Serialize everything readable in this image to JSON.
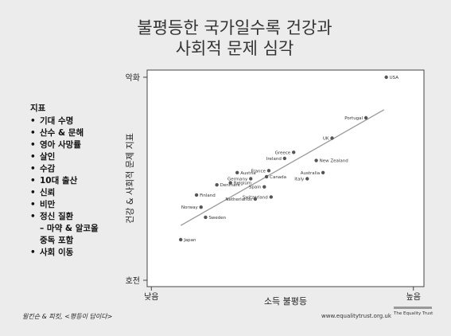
{
  "title": {
    "line1": "불평등한 국가일수록 건강과",
    "line2": "사회적 문제 심각"
  },
  "indicators": {
    "title": "지표",
    "items": [
      {
        "text": "기대 수명",
        "bullet": true
      },
      {
        "text": "산수 & 문해",
        "bullet": true
      },
      {
        "text": "영아 사망률",
        "bullet": true
      },
      {
        "text": "살인",
        "bullet": true
      },
      {
        "text": "수감",
        "bullet": true
      },
      {
        "text": "10대 출산",
        "bullet": true
      },
      {
        "text": "신뢰",
        "bullet": true
      },
      {
        "text": "비만",
        "bullet": true
      },
      {
        "text": "정신 질환",
        "bullet": true
      },
      {
        "text": "– 마약 & 알코올",
        "bullet": false
      },
      {
        "text": "중독 포함",
        "bullet": false
      },
      {
        "text": "사회 이동",
        "bullet": true
      }
    ]
  },
  "citation": "윌킨슨 & 피킷, <평등이 답이다>",
  "website": "www.equalitytrust.org.uk",
  "logo_text": "The Equality Trust",
  "chart_data": {
    "type": "scatter",
    "xlabel": "소득 불평등",
    "ylabel": "건강 & 사회적 문제 지표",
    "x_tick_labels": {
      "low": "낮음",
      "high": "높음"
    },
    "y_tick_labels": {
      "bad": "악화",
      "good": "호전"
    },
    "xlim": [
      0,
      100
    ],
    "ylim": [
      0,
      100
    ],
    "trendline": {
      "start": [
        5,
        27
      ],
      "end": [
        95,
        84
      ]
    },
    "points": [
      {
        "label": "USA",
        "x": 96,
        "y": 100,
        "label_side": "right"
      },
      {
        "label": "Portugal",
        "x": 87,
        "y": 80,
        "label_side": "left"
      },
      {
        "label": "UK",
        "x": 72,
        "y": 70,
        "label_side": "left"
      },
      {
        "label": "Greece",
        "x": 55,
        "y": 63,
        "label_side": "left"
      },
      {
        "label": "New Zealand",
        "x": 65,
        "y": 59,
        "label_side": "right"
      },
      {
        "label": "Ireland",
        "x": 51,
        "y": 60,
        "label_side": "left"
      },
      {
        "label": "France",
        "x": 44,
        "y": 54,
        "label_side": "left"
      },
      {
        "label": "Australia",
        "x": 68,
        "y": 53,
        "label_side": "left"
      },
      {
        "label": "Italy",
        "x": 61,
        "y": 50,
        "label_side": "left"
      },
      {
        "label": "Canada",
        "x": 43,
        "y": 51,
        "label_side": "right"
      },
      {
        "label": "Austria",
        "x": 30,
        "y": 53,
        "label_side": "right"
      },
      {
        "label": "Germany",
        "x": 36,
        "y": 50,
        "label_side": "left"
      },
      {
        "label": "Belgium",
        "x": 27,
        "y": 48,
        "label_side": "right"
      },
      {
        "label": "Spain",
        "x": 42,
        "y": 46,
        "label_side": "left"
      },
      {
        "label": "Denmark",
        "x": 21,
        "y": 47,
        "label_side": "right"
      },
      {
        "label": "Switzerland",
        "x": 45,
        "y": 41,
        "label_side": "left"
      },
      {
        "label": "Netherlands",
        "x": 38,
        "y": 40,
        "label_side": "left"
      },
      {
        "label": "Finland",
        "x": 12,
        "y": 42,
        "label_side": "right"
      },
      {
        "label": "Norway",
        "x": 14,
        "y": 36,
        "label_side": "left"
      },
      {
        "label": "Sweden",
        "x": 16,
        "y": 31,
        "label_side": "right"
      },
      {
        "label": "Japan",
        "x": 5,
        "y": 20,
        "label_side": "right"
      }
    ]
  }
}
